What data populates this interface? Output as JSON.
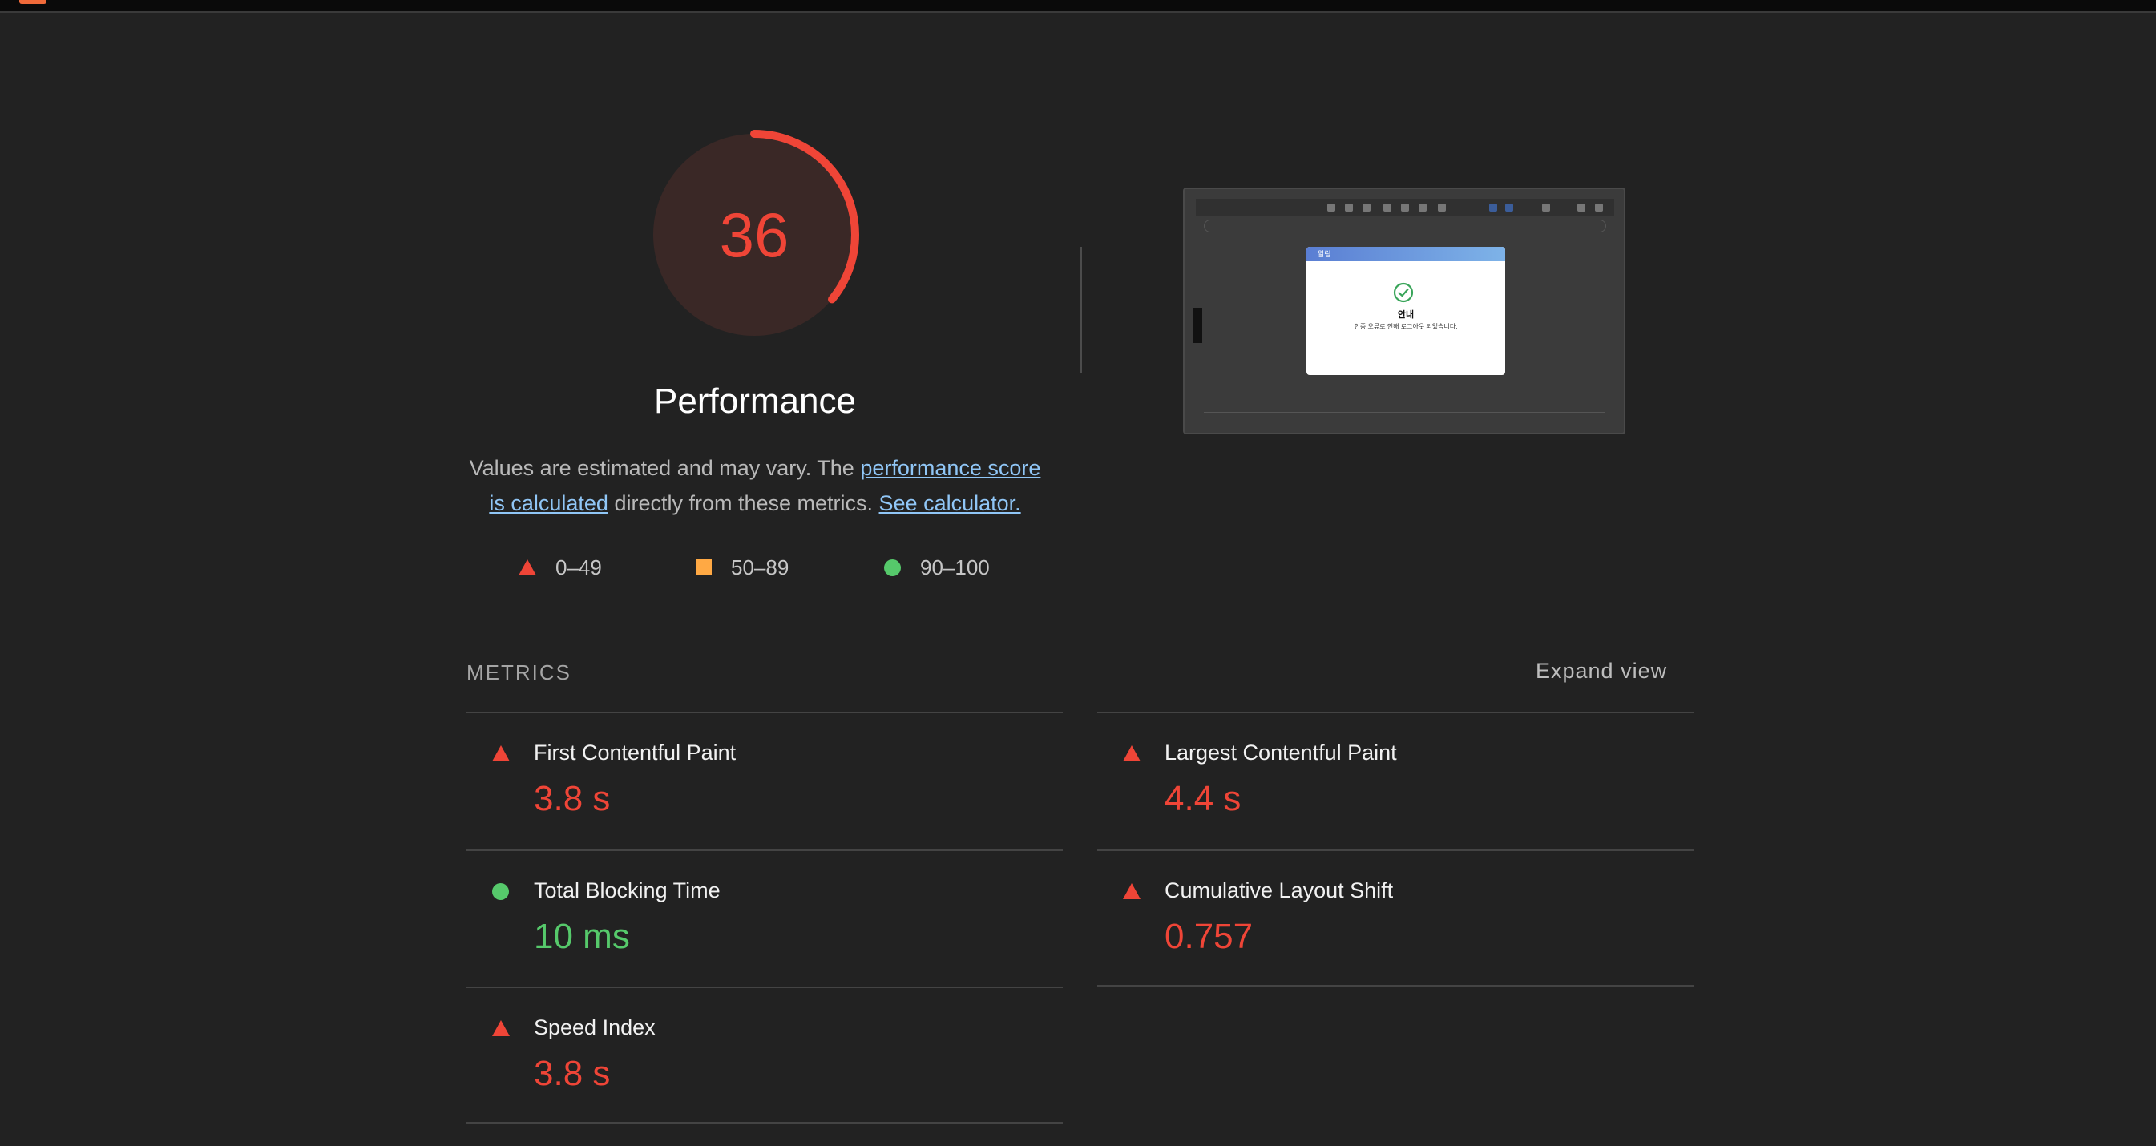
{
  "header": {
    "logo_icon": "lighthouse-logo-icon"
  },
  "score": {
    "value": "36",
    "fraction": 0.36,
    "color": "#ef4537",
    "track_color": "#3a2826"
  },
  "category": {
    "title": "Performance",
    "desc_prefix": "Values are estimated and may vary. The ",
    "link_score": "performance score is calculated",
    "desc_middle": " directly from these metrics. ",
    "link_calculator": "See calculator."
  },
  "legend": [
    {
      "shape": "triangle",
      "label": "0–49",
      "color": "#ef4537"
    },
    {
      "shape": "square",
      "label": "50–89",
      "color": "#ffa944"
    },
    {
      "shape": "circle",
      "label": "90–100",
      "color": "#56c96b"
    }
  ],
  "screenshot": {
    "modal_header": "알림",
    "modal_title": "안내",
    "modal_text": "인증 오류로 인해 로그아웃 되었습니다."
  },
  "metrics": {
    "header": "METRICS",
    "expand_label": "Expand view",
    "items": [
      {
        "title": "First Contentful Paint",
        "value": "3.8 s",
        "status": "fail"
      },
      {
        "title": "Largest Contentful Paint",
        "value": "4.4 s",
        "status": "fail"
      },
      {
        "title": "Total Blocking Time",
        "value": "10 ms",
        "status": "pass"
      },
      {
        "title": "Cumulative Layout Shift",
        "value": "0.757",
        "status": "fail"
      },
      {
        "title": "Speed Index",
        "value": "3.8 s",
        "status": "fail"
      }
    ]
  }
}
